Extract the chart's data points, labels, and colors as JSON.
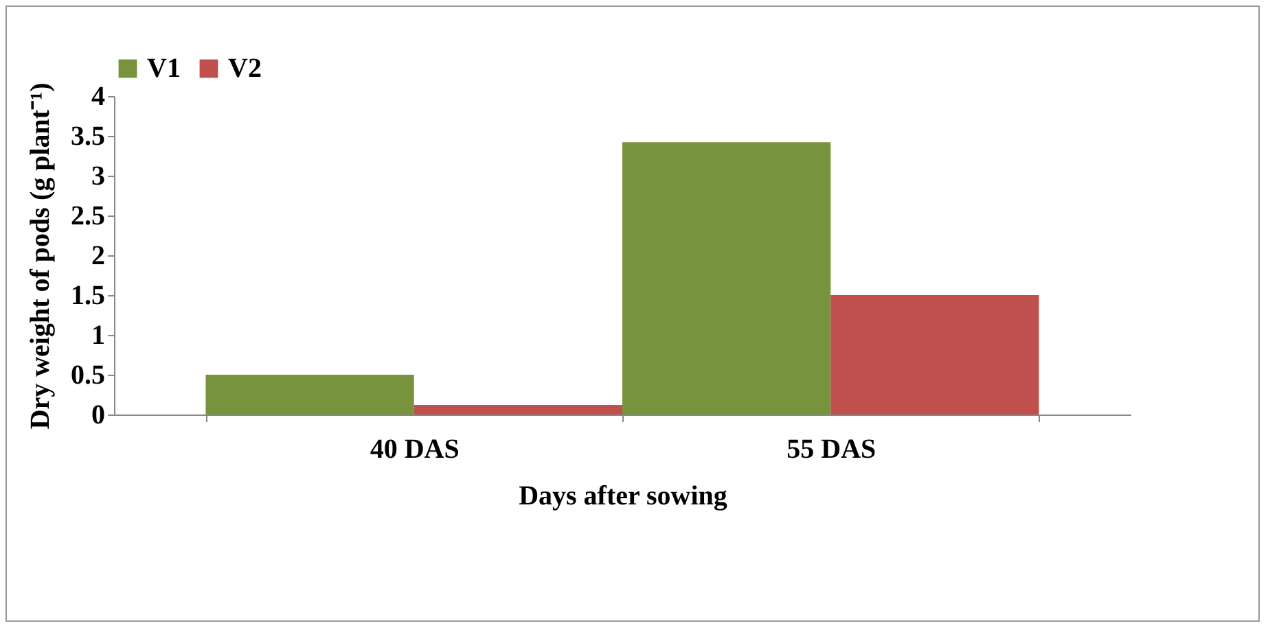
{
  "chart_data": {
    "type": "bar",
    "categories": [
      "40 DAS",
      "55 DAS"
    ],
    "series": [
      {
        "name": "V1",
        "color": "#77933c",
        "values": [
          0.5,
          3.42
        ]
      },
      {
        "name": "V2",
        "color": "#c0504d",
        "values": [
          0.12,
          1.5
        ]
      }
    ],
    "xlabel": "Days after sowing",
    "ylabel": "Dry weight of pods (g plant⁻¹)",
    "ylim": [
      0,
      4
    ],
    "yticks": [
      0,
      0.5,
      1,
      1.5,
      2,
      2.5,
      3,
      3.5,
      4
    ],
    "grid": false,
    "legend": "top"
  }
}
